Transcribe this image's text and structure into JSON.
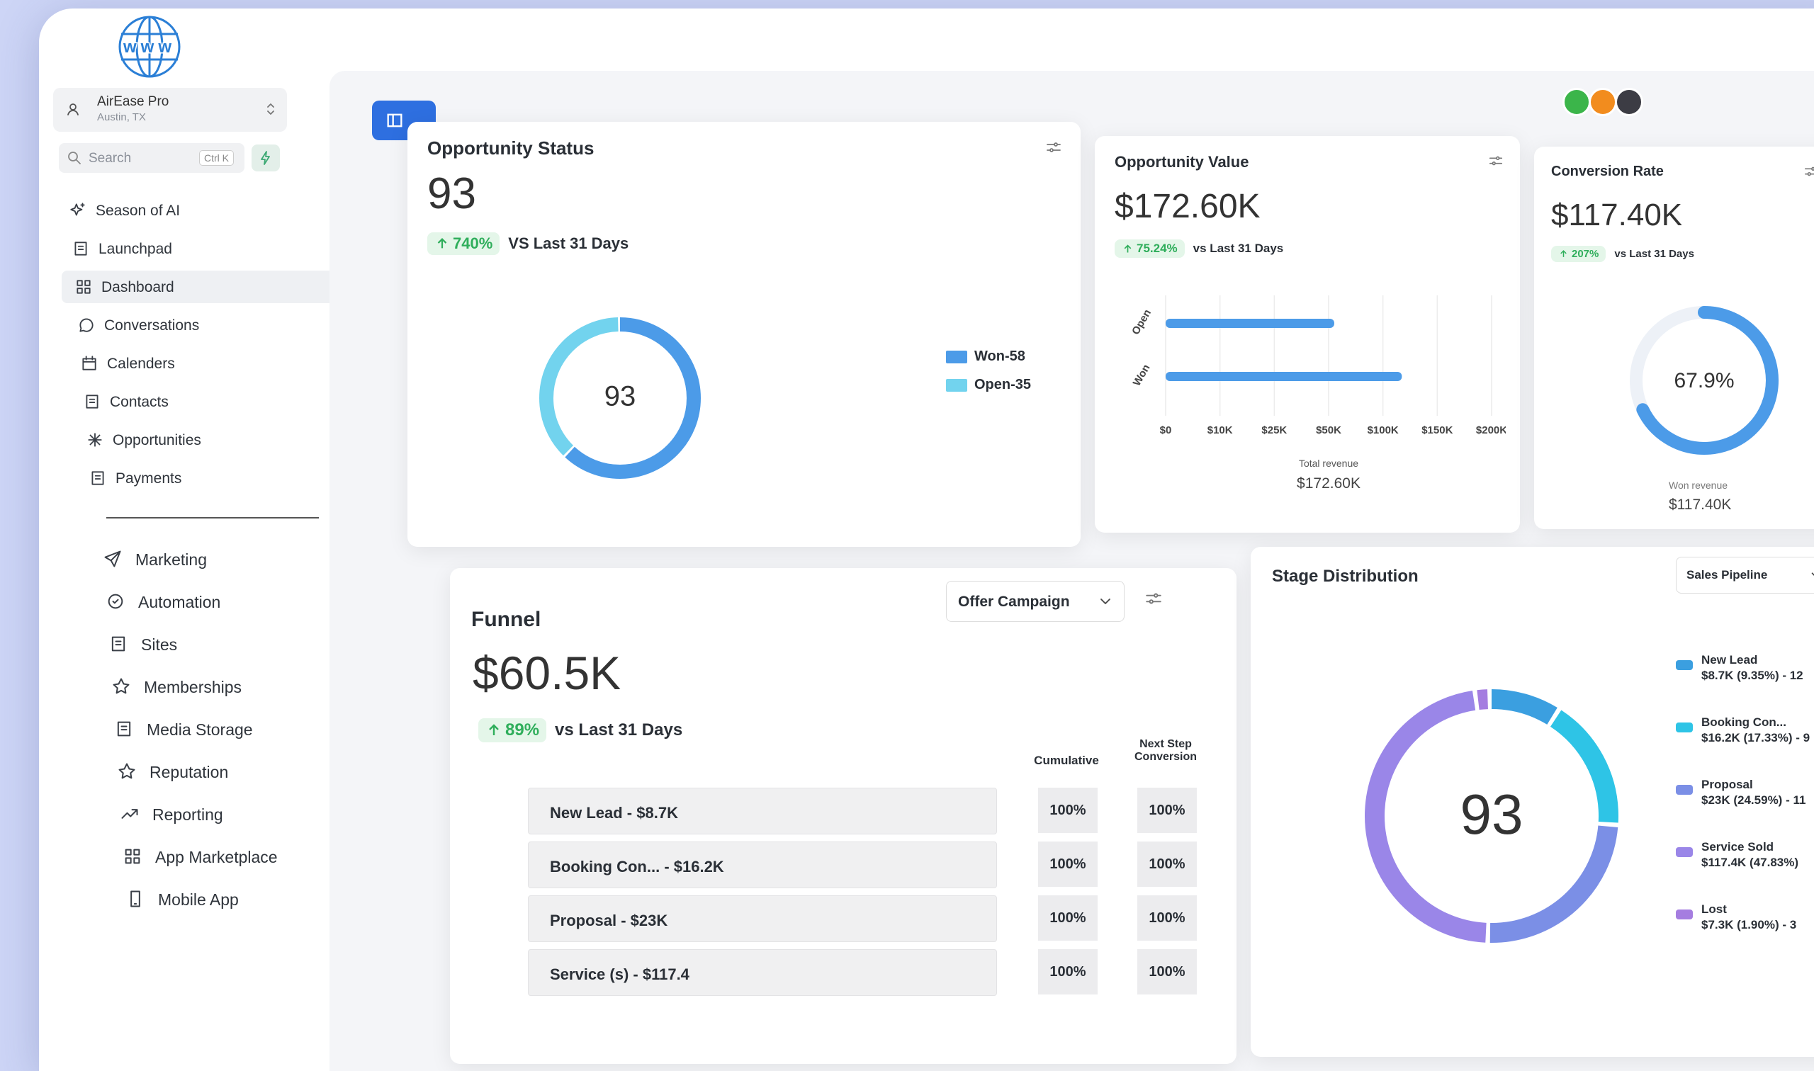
{
  "app": {
    "logo_text": "www",
    "account_name": "AirEase Pro",
    "account_location": "Austin, TX",
    "search_placeholder": "Search",
    "search_shortcut": "Ctrl K"
  },
  "nav": {
    "items": [
      "Season of AI",
      "Launchpad",
      "Dashboard",
      "Conversations",
      "Calenders",
      "Contacts",
      "Opportunities",
      "Payments"
    ],
    "active_index": 2,
    "secondary": [
      "Marketing",
      "Automation",
      "Sites",
      "Memberships",
      "Media Storage",
      "Reputation",
      "Reporting",
      "App Marketplace",
      "Mobile App"
    ]
  },
  "opportunity_status": {
    "title": "Opportunity Status",
    "value": "93",
    "change": "740%",
    "compare": "VS Last 31 Days",
    "center": "93",
    "segments": [
      {
        "label": "Won-58",
        "value": 58,
        "color": "#4c9be8"
      },
      {
        "label": "Open-35",
        "value": 35,
        "color": "#72d3ee"
      }
    ]
  },
  "opportunity_value": {
    "title": "Opportunity Value",
    "value": "$172.60K",
    "change": "75.24%",
    "compare": "vs Last 31 Days",
    "categories": [
      "Open",
      "Won"
    ],
    "values": [
      55200,
      117400
    ],
    "color": "#4c9be8",
    "xticks": [
      {
        "value": 0,
        "label": "$0"
      },
      {
        "value": 10000,
        "label": "$10K"
      },
      {
        "value": 25000,
        "label": "$25K"
      },
      {
        "value": 50000,
        "label": "$50K"
      },
      {
        "value": 100000,
        "label": "$100K"
      },
      {
        "value": 150000,
        "label": "$150K"
      },
      {
        "value": 200000,
        "label": "$200K"
      }
    ],
    "xlabel": "Total revenue",
    "total": "$172.60K"
  },
  "conversion_rate": {
    "title": "Conversion Rate",
    "value": "$117.40K",
    "change": "207%",
    "compare": "vs Last 31 Days",
    "percent": 67.9,
    "percent_label": "67.9%",
    "color": "#4c9be8",
    "label": "Won revenue",
    "total": "$117.40K"
  },
  "funnel": {
    "title": "Funnel",
    "dropdown": "Offer Campaign",
    "value": "$60.5K",
    "change": "89%",
    "compare": "vs Last 31 Days",
    "columns": [
      "Cumulative",
      "Next Step Conversion"
    ],
    "rows": [
      {
        "label": "New Lead - $8.7K",
        "cumulative": "100%",
        "next": "100%"
      },
      {
        "label": "Booking Con... - $16.2K",
        "cumulative": "100%",
        "next": "100%"
      },
      {
        "label": "Proposal - $23K",
        "cumulative": "100%",
        "next": "100%"
      },
      {
        "label": "Service (s) - $117.4",
        "cumulative": "100%",
        "next": "100%"
      }
    ]
  },
  "stage_distribution": {
    "title": "Stage Distribution",
    "dropdown": "Sales Pipeline",
    "center": "93",
    "segments": [
      {
        "name": "New Lead",
        "detail": "$8.7K (9.35%) - 12",
        "value": 9.35,
        "color": "#3b9fe0"
      },
      {
        "name": "Booking Con...",
        "detail": "$16.2K (17.33%) - 9",
        "value": 17.33,
        "color": "#2ec4e6"
      },
      {
        "name": "Proposal",
        "detail": "$23K (24.59%) - 11",
        "value": 24.59,
        "color": "#7b8fe6"
      },
      {
        "name": "Service Sold",
        "detail": "$117.4K (47.83%)",
        "value": 47.83,
        "color": "#9a86e8"
      },
      {
        "name": "Lost",
        "detail": "$7.3K (1.90%) - 3",
        "value": 1.9,
        "color": "#a57de0"
      }
    ]
  }
}
